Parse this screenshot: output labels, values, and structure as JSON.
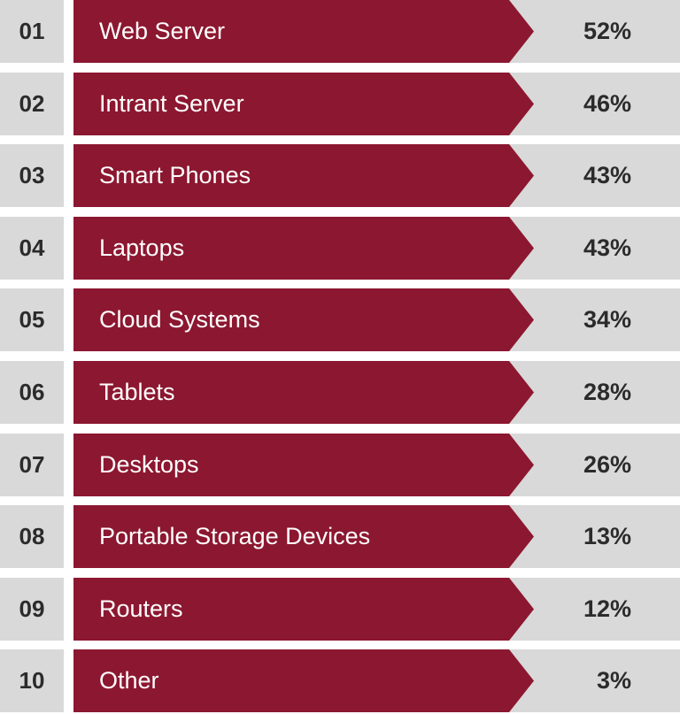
{
  "colors": {
    "accent": "#8c1730",
    "panel": "#d9d9d9",
    "text_dark": "#2b2b2b",
    "text_light": "#ffffff"
  },
  "chart_data": {
    "type": "bar",
    "categories": [
      "Web Server",
      "Intrant Server",
      "Smart Phones",
      "Laptops",
      "Cloud Systems",
      "Tablets",
      "Desktops",
      "Portable Storage Devices",
      "Routers",
      "Other"
    ],
    "values": [
      52,
      46,
      43,
      43,
      34,
      28,
      26,
      13,
      12,
      3
    ],
    "ranks": [
      "01",
      "02",
      "03",
      "04",
      "05",
      "06",
      "07",
      "08",
      "09",
      "10"
    ],
    "value_labels": [
      "52%",
      "46%",
      "43%",
      "43%",
      "34%",
      "28%",
      "26%",
      "13%",
      "12%",
      "3%"
    ],
    "title": "",
    "xlabel": "",
    "ylabel": "",
    "unit": "%"
  }
}
